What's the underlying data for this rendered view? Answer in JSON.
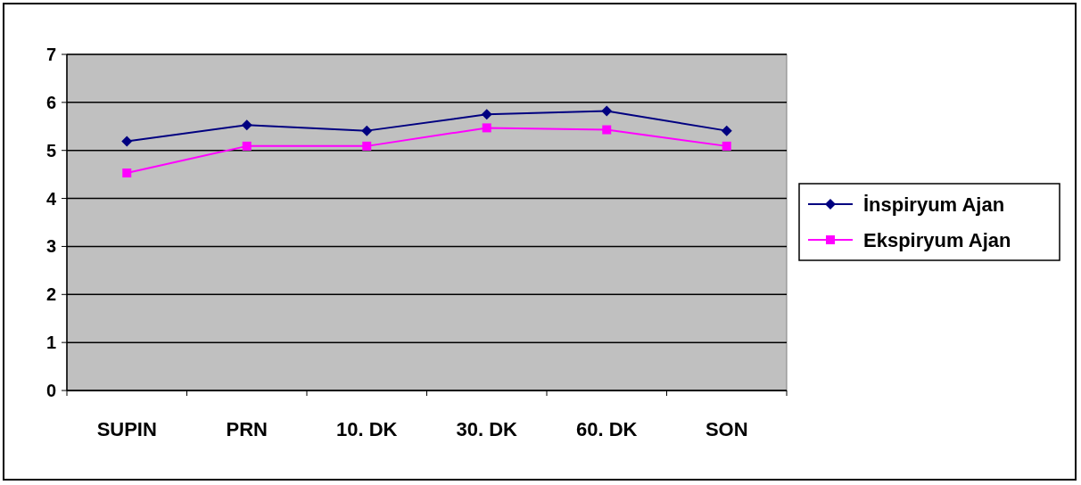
{
  "chart_data": {
    "type": "line",
    "categories": [
      "SUPIN",
      "PRN",
      "10. DK",
      "30. DK",
      "60. DK",
      "SON"
    ],
    "series": [
      {
        "name": "İnspiryum Ajan",
        "color": "#000080",
        "marker": "diamond",
        "values": [
          5.19,
          5.53,
          5.41,
          5.75,
          5.82,
          5.41
        ]
      },
      {
        "name": "Ekspiryum Ajan",
        "color": "#ff00ff",
        "marker": "square",
        "values": [
          4.53,
          5.09,
          5.09,
          5.47,
          5.43,
          5.09
        ]
      }
    ],
    "ylim": [
      0,
      7
    ],
    "yticks": [
      0,
      1,
      2,
      3,
      4,
      5,
      6,
      7
    ],
    "grid": "y",
    "legend": "right"
  }
}
